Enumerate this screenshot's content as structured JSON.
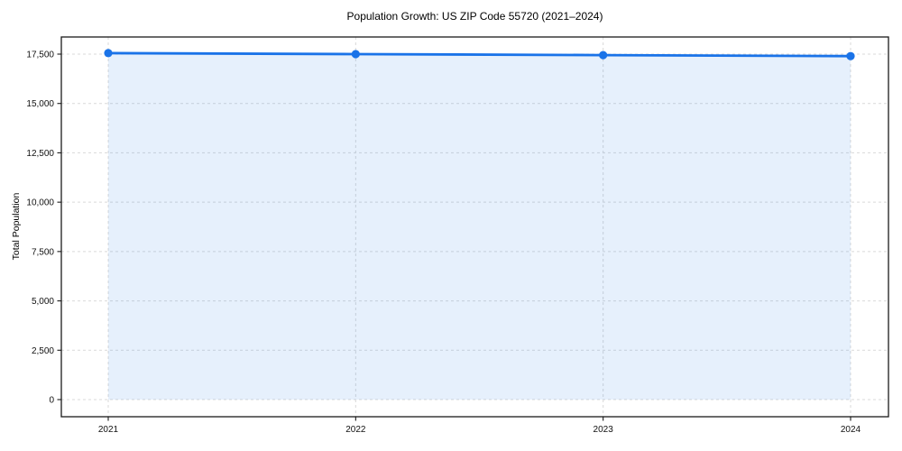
{
  "chart_data": {
    "type": "area",
    "title": "Population Growth: US ZIP Code 55720 (2021–2024)",
    "xlabel": "",
    "ylabel": "Total Population",
    "x": [
      2021,
      2022,
      2023,
      2024
    ],
    "xtick_labels": [
      "2021",
      "2022",
      "2023",
      "2024"
    ],
    "series": [
      {
        "name": "Total Population",
        "values": [
          17550,
          17500,
          17450,
          17400
        ]
      }
    ],
    "yticks": [
      0,
      2500,
      5000,
      7500,
      10000,
      12500,
      15000,
      17500
    ],
    "ytick_labels": [
      "0",
      "2,500",
      "5,000",
      "7,500",
      "10,000",
      "12,500",
      "15,000",
      "17,500"
    ],
    "ylim": [
      -877,
      18427
    ],
    "grid": "dashed, horizontal and vertical",
    "legend": "none",
    "colors": {
      "line": "#1a73e8",
      "marker": "#1a73e8",
      "fill": "rgba(26,115,232,0.11)",
      "gridline": "#d9d9d9",
      "axis": "#1a1a1a",
      "text": "#111111",
      "background": "#ffffff"
    }
  }
}
